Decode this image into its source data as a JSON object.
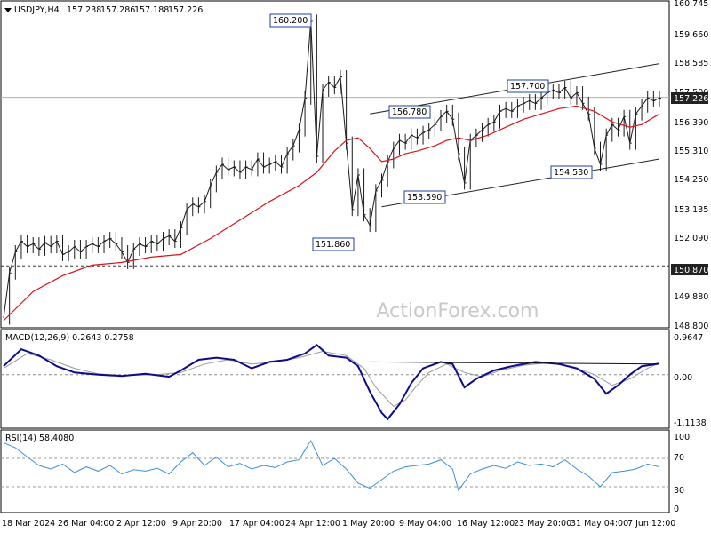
{
  "chart_data": {
    "type": "candlestick",
    "symbol_title": "USDJPY,H4",
    "ohlc_readout": [
      "157.238",
      "157.286",
      "157.188",
      "157.226"
    ],
    "watermark": "ActionForex.com",
    "colors": {
      "price": "#1a1a1a",
      "ma": "#d8141b",
      "macd": "#0b0b8c",
      "signal": "#9a9a9a",
      "rsi": "#3d8ed8",
      "label_border": "#1f3f9f"
    },
    "x_labels": [
      "18 Mar 2024",
      "26 Mar 04:00",
      "2 Apr 12:00",
      "9 Apr 20:00",
      "17 Apr 04:00",
      "24 Apr 12:00",
      "1 May 20:00",
      "9 May 04:00",
      "16 May 12:00",
      "23 May 20:00",
      "31 May 04:00",
      "7 Jun 12:00"
    ],
    "price_axis": {
      "ticks": [
        "160.745",
        "159.660",
        "158.585",
        "157.500",
        "156.390",
        "155.310",
        "154.250",
        "153.135",
        "152.090",
        "150.870",
        "149.880",
        "148.800"
      ],
      "min": 148.6,
      "max": 160.8
    },
    "current_price": "157.226",
    "support_level": "150.870",
    "annotations": [
      "160.200",
      "156.780",
      "157.700",
      "153.590",
      "154.530",
      "151.860"
    ],
    "price_points": [
      [
        0,
        148.9
      ],
      [
        1,
        150.6
      ],
      [
        2,
        151.4
      ],
      [
        3,
        151.8
      ],
      [
        4,
        151.6
      ],
      [
        5,
        151.7
      ],
      [
        6,
        151.5
      ],
      [
        7,
        151.75
      ],
      [
        8,
        151.6
      ],
      [
        9,
        151.8
      ],
      [
        10,
        151.3
      ],
      [
        11,
        151.4
      ],
      [
        12,
        151.6
      ],
      [
        13,
        151.4
      ],
      [
        14,
        151.6
      ],
      [
        15,
        151.7
      ],
      [
        16,
        151.6
      ],
      [
        17,
        151.8
      ],
      [
        18,
        151.9
      ],
      [
        19,
        151.7
      ],
      [
        20,
        151.4
      ],
      [
        21,
        151.0
      ],
      [
        22,
        151.5
      ],
      [
        23,
        151.7
      ],
      [
        24,
        151.6
      ],
      [
        25,
        151.8
      ],
      [
        26,
        151.7
      ],
      [
        27,
        151.9
      ],
      [
        28,
        152.0
      ],
      [
        29,
        151.8
      ],
      [
        30,
        152.3
      ],
      [
        31,
        153.0
      ],
      [
        32,
        153.2
      ],
      [
        33,
        153.1
      ],
      [
        34,
        153.3
      ],
      [
        35,
        153.9
      ],
      [
        36,
        154.4
      ],
      [
        37,
        154.7
      ],
      [
        38,
        154.5
      ],
      [
        39,
        154.6
      ],
      [
        40,
        154.4
      ],
      [
        41,
        154.6
      ],
      [
        42,
        154.5
      ],
      [
        43,
        154.9
      ],
      [
        44,
        154.6
      ],
      [
        45,
        154.7
      ],
      [
        46,
        154.8
      ],
      [
        47,
        154.6
      ],
      [
        48,
        155.1
      ],
      [
        49,
        155.4
      ],
      [
        50,
        156.0
      ],
      [
        51,
        157.2
      ],
      [
        52,
        160.1
      ],
      [
        53,
        155.0
      ],
      [
        54,
        157.5
      ],
      [
        55,
        157.8
      ],
      [
        56,
        157.6
      ],
      [
        57,
        158.0
      ],
      [
        58,
        155.5
      ],
      [
        59,
        153.0
      ],
      [
        60,
        154.3
      ],
      [
        61,
        152.8
      ],
      [
        62,
        152.4
      ],
      [
        63,
        153.7
      ],
      [
        64,
        154.1
      ],
      [
        65,
        154.8
      ],
      [
        66,
        155.3
      ],
      [
        67,
        155.6
      ],
      [
        68,
        155.5
      ],
      [
        69,
        155.8
      ],
      [
        70,
        155.7
      ],
      [
        71,
        155.9
      ],
      [
        72,
        156.0
      ],
      [
        73,
        156.2
      ],
      [
        74,
        156.5
      ],
      [
        75,
        156.7
      ],
      [
        76,
        156.4
      ],
      [
        77,
        155.1
      ],
      [
        78,
        154.0
      ],
      [
        79,
        155.6
      ],
      [
        80,
        155.8
      ],
      [
        81,
        156.0
      ],
      [
        82,
        156.2
      ],
      [
        83,
        156.3
      ],
      [
        84,
        156.7
      ],
      [
        85,
        156.8
      ],
      [
        86,
        156.7
      ],
      [
        87,
        156.9
      ],
      [
        88,
        157.0
      ],
      [
        89,
        157.1
      ],
      [
        90,
        157.0
      ],
      [
        91,
        157.2
      ],
      [
        92,
        157.4
      ],
      [
        93,
        157.5
      ],
      [
        94,
        157.4
      ],
      [
        95,
        157.6
      ],
      [
        96,
        157.2
      ],
      [
        97,
        157.4
      ],
      [
        98,
        157.0
      ],
      [
        99,
        156.6
      ],
      [
        100,
        155.3
      ],
      [
        101,
        154.7
      ],
      [
        102,
        155.8
      ],
      [
        103,
        156.2
      ],
      [
        104,
        156.0
      ],
      [
        105,
        156.5
      ],
      [
        106,
        155.5
      ],
      [
        107,
        156.6
      ],
      [
        108,
        156.9
      ],
      [
        109,
        157.2
      ],
      [
        110,
        157.1
      ],
      [
        111,
        157.2
      ]
    ],
    "ma_points": [
      [
        0,
        148.8
      ],
      [
        5,
        149.9
      ],
      [
        10,
        150.5
      ],
      [
        15,
        150.9
      ],
      [
        20,
        151.0
      ],
      [
        25,
        151.2
      ],
      [
        30,
        151.3
      ],
      [
        35,
        151.9
      ],
      [
        40,
        152.6
      ],
      [
        45,
        153.3
      ],
      [
        50,
        153.9
      ],
      [
        53,
        154.4
      ],
      [
        56,
        155.2
      ],
      [
        58,
        155.6
      ],
      [
        60,
        155.7
      ],
      [
        62,
        155.3
      ],
      [
        64,
        154.8
      ],
      [
        66,
        154.9
      ],
      [
        68,
        155.1
      ],
      [
        70,
        155.2
      ],
      [
        73,
        155.4
      ],
      [
        75,
        155.6
      ],
      [
        77,
        155.7
      ],
      [
        79,
        155.6
      ],
      [
        82,
        155.8
      ],
      [
        85,
        156.1
      ],
      [
        88,
        156.4
      ],
      [
        91,
        156.6
      ],
      [
        94,
        156.8
      ],
      [
        97,
        156.9
      ],
      [
        100,
        156.7
      ],
      [
        103,
        156.3
      ],
      [
        106,
        156.1
      ],
      [
        108,
        156.2
      ],
      [
        111,
        156.6
      ]
    ],
    "channel_upper": [
      [
        62,
        156.6
      ],
      [
        111,
        158.5
      ]
    ],
    "channel_lower": [
      [
        64,
        153.1
      ],
      [
        111,
        154.9
      ]
    ],
    "macd": {
      "label": "MACD(12,26,9) 0.2643 0.2758",
      "ticks": [
        "0.9647",
        "0.00",
        "-1.1138"
      ],
      "min": -1.2,
      "max": 1.0,
      "macd_points": [
        [
          0,
          0.2
        ],
        [
          3,
          0.6
        ],
        [
          6,
          0.45
        ],
        [
          9,
          0.2
        ],
        [
          12,
          0.05
        ],
        [
          16,
          0.0
        ],
        [
          20,
          -0.03
        ],
        [
          24,
          0.02
        ],
        [
          28,
          -0.05
        ],
        [
          30,
          0.1
        ],
        [
          33,
          0.35
        ],
        [
          36,
          0.4
        ],
        [
          39,
          0.35
        ],
        [
          42,
          0.15
        ],
        [
          45,
          0.3
        ],
        [
          48,
          0.35
        ],
        [
          51,
          0.5
        ],
        [
          53,
          0.7
        ],
        [
          55,
          0.45
        ],
        [
          58,
          0.4
        ],
        [
          60,
          0.2
        ],
        [
          62,
          -0.4
        ],
        [
          64,
          -0.9
        ],
        [
          65,
          -1.05
        ],
        [
          67,
          -0.7
        ],
        [
          69,
          -0.2
        ],
        [
          71,
          0.15
        ],
        [
          74,
          0.3
        ],
        [
          76,
          0.25
        ],
        [
          78,
          -0.3
        ],
        [
          80,
          -0.1
        ],
        [
          83,
          0.1
        ],
        [
          86,
          0.2
        ],
        [
          90,
          0.3
        ],
        [
          94,
          0.25
        ],
        [
          97,
          0.15
        ],
        [
          100,
          -0.1
        ],
        [
          102,
          -0.45
        ],
        [
          104,
          -0.25
        ],
        [
          106,
          0.0
        ],
        [
          108,
          0.2
        ],
        [
          111,
          0.26
        ]
      ],
      "signal_points": [
        [
          0,
          0.15
        ],
        [
          4,
          0.5
        ],
        [
          8,
          0.35
        ],
        [
          12,
          0.15
        ],
        [
          16,
          0.02
        ],
        [
          20,
          -0.02
        ],
        [
          26,
          0.0
        ],
        [
          30,
          0.05
        ],
        [
          34,
          0.25
        ],
        [
          38,
          0.35
        ],
        [
          42,
          0.25
        ],
        [
          46,
          0.3
        ],
        [
          50,
          0.4
        ],
        [
          54,
          0.55
        ],
        [
          58,
          0.45
        ],
        [
          61,
          0.15
        ],
        [
          63,
          -0.3
        ],
        [
          66,
          -0.75
        ],
        [
          68,
          -0.6
        ],
        [
          70,
          -0.25
        ],
        [
          72,
          0.05
        ],
        [
          75,
          0.25
        ],
        [
          78,
          0.05
        ],
        [
          81,
          -0.05
        ],
        [
          84,
          0.1
        ],
        [
          88,
          0.22
        ],
        [
          92,
          0.28
        ],
        [
          96,
          0.2
        ],
        [
          100,
          0.0
        ],
        [
          103,
          -0.25
        ],
        [
          106,
          -0.1
        ],
        [
          109,
          0.15
        ],
        [
          111,
          0.28
        ]
      ],
      "resistance_line": [
        [
          62,
          0.3
        ],
        [
          111,
          0.25
        ]
      ]
    },
    "rsi": {
      "label": "RSI(14) 58.4080",
      "ticks": [
        "100",
        "70",
        "50",
        "30",
        "0"
      ],
      "min": 0,
      "max": 100,
      "levels": [
        70,
        30
      ],
      "points": [
        [
          0,
          92
        ],
        [
          2,
          85
        ],
        [
          4,
          72
        ],
        [
          6,
          60
        ],
        [
          8,
          55
        ],
        [
          10,
          62
        ],
        [
          12,
          50
        ],
        [
          14,
          58
        ],
        [
          16,
          52
        ],
        [
          18,
          60
        ],
        [
          20,
          48
        ],
        [
          22,
          54
        ],
        [
          24,
          52
        ],
        [
          26,
          56
        ],
        [
          28,
          48
        ],
        [
          30,
          65
        ],
        [
          32,
          78
        ],
        [
          34,
          60
        ],
        [
          36,
          72
        ],
        [
          38,
          58
        ],
        [
          40,
          63
        ],
        [
          42,
          55
        ],
        [
          44,
          60
        ],
        [
          46,
          57
        ],
        [
          48,
          65
        ],
        [
          50,
          68
        ],
        [
          52,
          95
        ],
        [
          54,
          60
        ],
        [
          56,
          70
        ],
        [
          58,
          55
        ],
        [
          60,
          35
        ],
        [
          62,
          28
        ],
        [
          64,
          40
        ],
        [
          66,
          52
        ],
        [
          68,
          58
        ],
        [
          70,
          60
        ],
        [
          72,
          62
        ],
        [
          74,
          68
        ],
        [
          76,
          55
        ],
        [
          77,
          25
        ],
        [
          79,
          48
        ],
        [
          81,
          55
        ],
        [
          83,
          60
        ],
        [
          85,
          56
        ],
        [
          87,
          65
        ],
        [
          89,
          60
        ],
        [
          91,
          62
        ],
        [
          93,
          58
        ],
        [
          95,
          68
        ],
        [
          97,
          55
        ],
        [
          99,
          45
        ],
        [
          101,
          30
        ],
        [
          103,
          50
        ],
        [
          105,
          52
        ],
        [
          107,
          55
        ],
        [
          109,
          62
        ],
        [
          111,
          58
        ]
      ]
    }
  }
}
